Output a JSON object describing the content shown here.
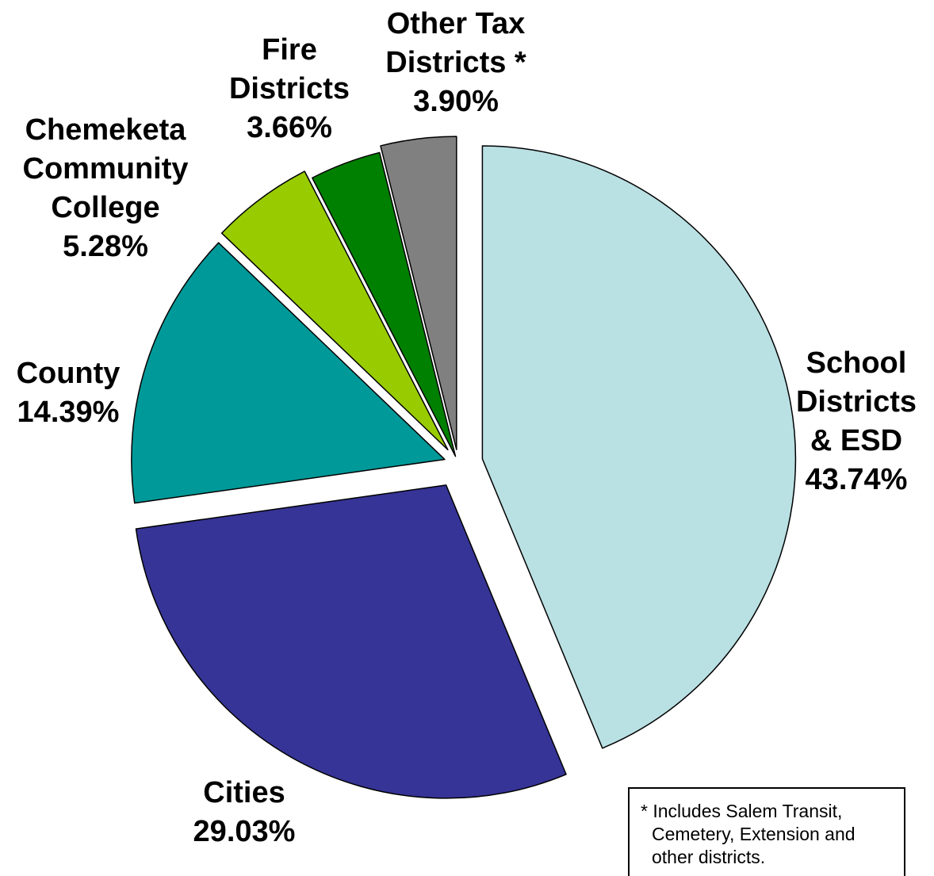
{
  "chart_data": {
    "type": "pie",
    "slices": [
      {
        "name": "School Districts & ESD",
        "label_lines": [
          "School",
          "Districts",
          "& ESD"
        ],
        "value": 43.74,
        "value_label": "43.74%",
        "color": "#b9e0e3"
      },
      {
        "name": "Cities",
        "label_lines": [
          "Cities"
        ],
        "value": 29.03,
        "value_label": "29.03%",
        "color": "#363496"
      },
      {
        "name": "County",
        "label_lines": [
          "County"
        ],
        "value": 14.39,
        "value_label": "14.39%",
        "color": "#009999"
      },
      {
        "name": "Chemeketa Community College",
        "label_lines": [
          "Chemeketa",
          "Community",
          "College"
        ],
        "value": 5.28,
        "value_label": "5.28%",
        "color": "#99cc00"
      },
      {
        "name": "Fire Districts",
        "label_lines": [
          "Fire",
          "Districts"
        ],
        "value": 3.66,
        "value_label": "3.66%",
        "color": "#008000"
      },
      {
        "name": "Other Tax Districts *",
        "label_lines": [
          "Other Tax",
          "Districts *"
        ],
        "value": 3.9,
        "value_label": "3.90%",
        "color": "#808080"
      }
    ],
    "start": "12 o'clock",
    "direction": "clockwise",
    "exploded": true
  },
  "footnote": {
    "line1": "* Includes Salem Transit,",
    "line2": "Cemetery, Extension and",
    "line3": "other districts."
  }
}
